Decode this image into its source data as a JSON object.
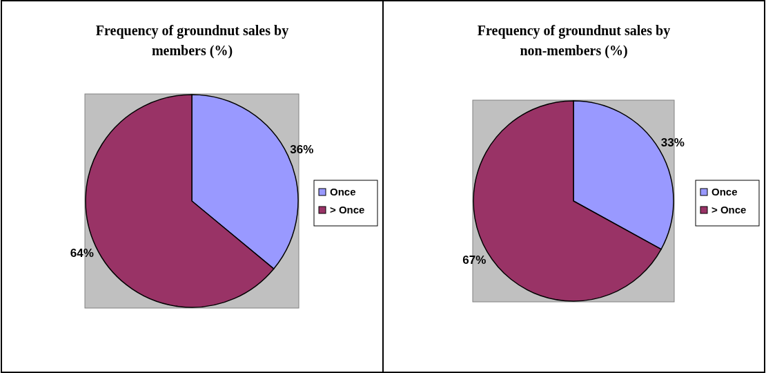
{
  "chart_data": [
    {
      "type": "pie",
      "title": "Frequency of groundnut sales by members (%)",
      "categories": [
        "Once",
        "> Once"
      ],
      "values": [
        36,
        64
      ],
      "colors": [
        "#9999ff",
        "#993366"
      ],
      "value_labels": [
        "36%",
        "64%"
      ],
      "legend": "right"
    },
    {
      "type": "pie",
      "title": "Frequency of groundnut sales by non-members (%)",
      "categories": [
        "Once",
        "> Once"
      ],
      "values": [
        33,
        67
      ],
      "colors": [
        "#9999ff",
        "#993366"
      ],
      "value_labels": [
        "33%",
        "67%"
      ],
      "legend": "right"
    }
  ]
}
